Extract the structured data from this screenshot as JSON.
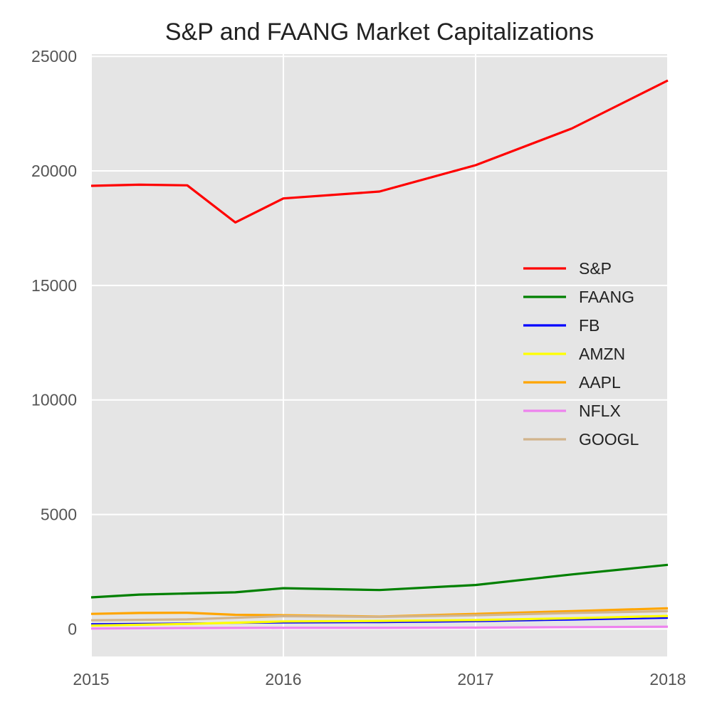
{
  "chart_data": {
    "type": "line",
    "title": "S&P and FAANG Market Capitalizations",
    "xlabel": "",
    "ylabel": "",
    "xlim": [
      2015,
      2018
    ],
    "ylim": [
      -1200,
      25100
    ],
    "x_ticks": [
      2015,
      2016,
      2017,
      2018
    ],
    "y_ticks": [
      0,
      5000,
      10000,
      15000,
      20000,
      25000
    ],
    "grid": true,
    "legend_position": "center-right",
    "series": [
      {
        "name": "S&P",
        "color": "#ff0000",
        "width": 3.2,
        "x": [
          2015,
          2015.25,
          2015.5,
          2015.75,
          2016,
          2016.5,
          2017,
          2017.5,
          2018
        ],
        "y": [
          19350,
          19400,
          19370,
          17750,
          18800,
          19100,
          20250,
          21850,
          23950
        ]
      },
      {
        "name": "FAANG",
        "color": "#008000",
        "width": 3.2,
        "x": [
          2015,
          2015.25,
          2015.5,
          2015.75,
          2016,
          2016.5,
          2017,
          2017.5,
          2018
        ],
        "y": [
          1380,
          1500,
          1550,
          1600,
          1780,
          1700,
          1920,
          2380,
          2800
        ]
      },
      {
        "name": "FB",
        "color": "#0000ff",
        "width": 2.2,
        "x": [
          2015,
          2015.5,
          2016,
          2016.5,
          2017,
          2017.5,
          2018
        ],
        "y": [
          220,
          250,
          270,
          290,
          330,
          400,
          480
        ]
      },
      {
        "name": "AMZN",
        "color": "#ffff00",
        "width": 3.2,
        "x": [
          2015,
          2015.5,
          2016,
          2016.5,
          2017,
          2017.5,
          2018
        ],
        "y": [
          150,
          220,
          330,
          350,
          390,
          470,
          570
        ]
      },
      {
        "name": "AAPL",
        "color": "#ffa500",
        "width": 3.2,
        "x": [
          2015,
          2015.25,
          2015.5,
          2015.75,
          2016,
          2016.5,
          2017,
          2017.5,
          2018
        ],
        "y": [
          660,
          700,
          710,
          620,
          600,
          540,
          660,
          780,
          900
        ]
      },
      {
        "name": "NFLX",
        "color": "#ee82ee",
        "width": 3.2,
        "x": [
          2015,
          2015.5,
          2016,
          2016.5,
          2017,
          2017.5,
          2018
        ],
        "y": [
          20,
          40,
          50,
          50,
          60,
          80,
          100
        ]
      },
      {
        "name": "GOOGL",
        "color": "#d2b48c",
        "width": 3.2,
        "x": [
          2015,
          2015.5,
          2016,
          2016.5,
          2017,
          2017.5,
          2018
        ],
        "y": [
          380,
          420,
          560,
          530,
          600,
          700,
          780
        ]
      }
    ]
  }
}
